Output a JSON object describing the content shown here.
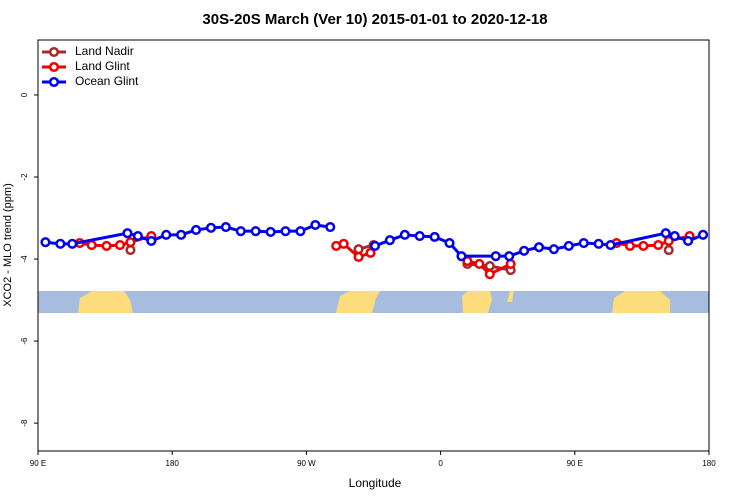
{
  "chart_data": {
    "type": "line",
    "title": "30S-20S March (Ver 10)   2015-01-01 to 2020-12-18",
    "x_label": "Longitude",
    "y_label": "XCO2 - MLO trend (ppm)",
    "xlim": [
      -270,
      180
    ],
    "xticks": [
      {
        "value": -270,
        "label": "90 E"
      },
      {
        "value": -180,
        "label": "180"
      },
      {
        "value": -90,
        "label": "90 W"
      },
      0,
      {
        "value": 90,
        "label": "90 E"
      },
      {
        "value": 180,
        "label": "180"
      }
    ],
    "ylim": [
      -8.68,
      1.34
    ],
    "yticks": [
      0,
      -2,
      -4,
      -6,
      -8
    ],
    "legend": "top-left",
    "series": [
      {
        "name": "Land Nadir",
        "color": "#a52a2a",
        "x": [
          -208,
          null,
          -55,
          -45,
          null,
          18,
          33,
          47,
          null,
          153
        ],
        "values": [
          -3.78,
          null,
          -3.76,
          -3.66,
          null,
          -4.12,
          -4.17,
          -4.27,
          null,
          -3.78
        ]
      },
      {
        "name": "Land Glint",
        "color": "#ee0000",
        "x": [
          -242,
          -234,
          -224,
          -215,
          -208,
          -194,
          null,
          -70,
          -65,
          -55,
          -47,
          null,
          18,
          26,
          33,
          47,
          null,
          118,
          127,
          136,
          146,
          153,
          167
        ],
        "values": [
          -3.61,
          -3.66,
          -3.68,
          -3.66,
          -3.59,
          -3.44,
          null,
          -3.68,
          -3.63,
          -3.95,
          -3.85,
          null,
          -4.05,
          -4.12,
          -4.37,
          -4.12,
          null,
          -3.61,
          -3.68,
          -3.68,
          -3.66,
          -3.56,
          -3.44
        ]
      },
      {
        "name": "Ocean Glint",
        "color": "#0000ee",
        "x": [
          -265,
          -255,
          -247,
          -210,
          -203,
          -194,
          -184,
          -174,
          -164,
          -154,
          -144,
          -134,
          -124,
          -114,
          -104,
          -94,
          -84,
          -74,
          null,
          -44,
          -34,
          -24,
          -14,
          -4,
          6,
          14,
          37,
          46,
          56,
          66,
          76,
          86,
          96,
          106,
          114,
          151,
          157,
          166,
          176
        ],
        "values": [
          -3.59,
          -3.63,
          -3.63,
          -3.37,
          -3.44,
          -3.56,
          -3.41,
          -3.41,
          -3.29,
          -3.24,
          -3.22,
          -3.32,
          -3.32,
          -3.34,
          -3.32,
          -3.32,
          -3.17,
          -3.22,
          null,
          -3.68,
          -3.54,
          -3.41,
          -3.44,
          -3.46,
          -3.61,
          -3.93,
          -3.93,
          -3.93,
          -3.8,
          -3.71,
          -3.76,
          -3.68,
          -3.61,
          -3.63,
          -3.66,
          -3.37,
          -3.44,
          -3.56,
          -3.41
        ]
      }
    ]
  }
}
